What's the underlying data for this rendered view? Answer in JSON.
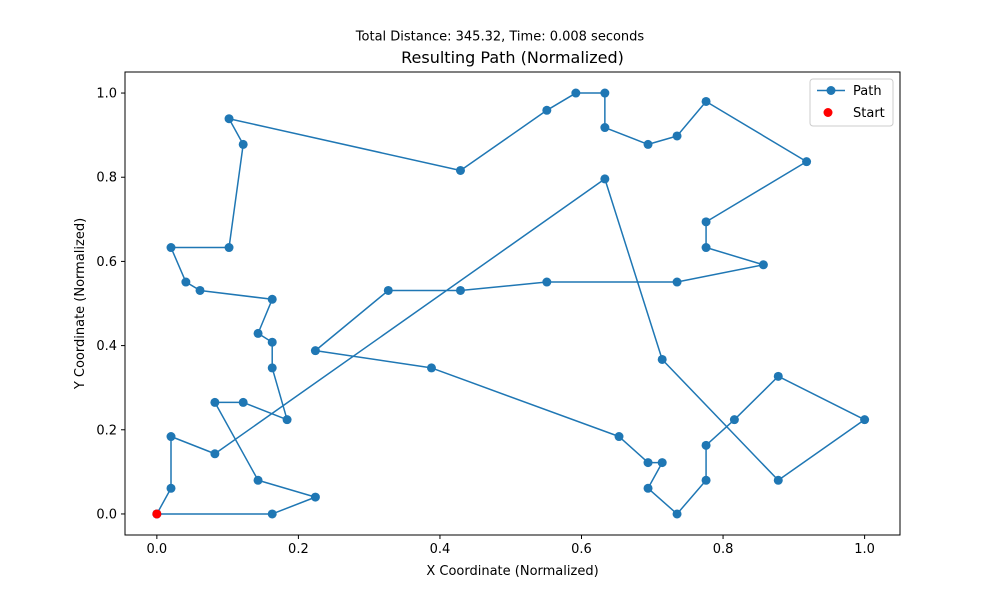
{
  "chart_data": {
    "type": "line",
    "suptitle": "Total Distance: 345.32, Time: 0.008 seconds",
    "title": "Resulting Path (Normalized)",
    "xlabel": "X Coordinate (Normalized)",
    "ylabel": "Y Coordinate (Normalized)",
    "xlim": [
      -0.045,
      1.05
    ],
    "ylim": [
      -0.05,
      1.05
    ],
    "x_ticks": [
      0.0,
      0.2,
      0.4,
      0.6,
      0.8,
      1.0
    ],
    "x_tick_labels": [
      "0.0",
      "0.2",
      "0.4",
      "0.6",
      "0.8",
      "1.0"
    ],
    "y_ticks": [
      0.0,
      0.2,
      0.4,
      0.6,
      0.8,
      1.0
    ],
    "y_tick_labels": [
      "0.0",
      "0.2",
      "0.4",
      "0.6",
      "0.8",
      "1.0"
    ],
    "grid": false,
    "legend_position": "top-right",
    "series": [
      {
        "name": "Path",
        "color": "#1f77b4",
        "marker": "circle",
        "x": [
          0.0,
          0.163,
          0.224,
          0.143,
          0.082,
          0.122,
          0.184,
          0.163,
          0.163,
          0.143,
          0.163,
          0.061,
          0.041,
          0.02,
          0.102,
          0.122,
          0.102,
          0.429,
          0.551,
          0.592,
          0.633,
          0.633,
          0.694,
          0.735,
          0.776,
          0.918,
          0.776,
          0.776,
          0.857,
          0.735,
          0.551,
          0.429,
          0.327,
          0.224,
          0.388,
          0.653,
          0.694,
          0.714,
          0.694,
          0.735,
          0.776,
          0.776,
          0.816,
          0.878,
          1.0,
          0.878,
          0.714,
          0.633,
          0.082,
          0.02,
          0.02,
          0.0
        ],
        "y": [
          0.0,
          0.0,
          0.04,
          0.08,
          0.265,
          0.265,
          0.224,
          0.347,
          0.408,
          0.429,
          0.51,
          0.531,
          0.551,
          0.633,
          0.633,
          0.878,
          0.939,
          0.816,
          0.959,
          1.0,
          1.0,
          0.918,
          0.878,
          0.898,
          0.98,
          0.837,
          0.694,
          0.633,
          0.592,
          0.551,
          0.551,
          0.531,
          0.531,
          0.388,
          0.347,
          0.184,
          0.122,
          0.122,
          0.061,
          0.0,
          0.08,
          0.163,
          0.224,
          0.327,
          0.224,
          0.08,
          0.367,
          0.796,
          0.143,
          0.184,
          0.061,
          0.0
        ]
      },
      {
        "name": "Start",
        "color": "#ff0000",
        "marker": "circle",
        "x": [
          0.0
        ],
        "y": [
          0.0
        ]
      }
    ]
  }
}
